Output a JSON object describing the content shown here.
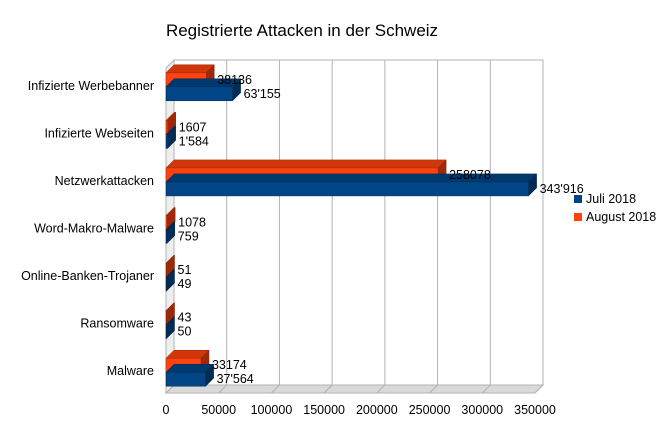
{
  "chart_data": {
    "type": "bar",
    "orientation": "horizontal",
    "three_d": true,
    "title": "Registrierte Attacken in der Schweiz",
    "categories": [
      "Infizierte Werbebanner",
      "Infizierte Webseiten",
      "Netzwerkattacken",
      "Word-Makro-Malware",
      "Online-Banken-Trojaner",
      "Ransomware",
      "Malware"
    ],
    "series": [
      {
        "name": "Juli 2018",
        "color": "#004586",
        "values": [
          63155,
          1584,
          343916,
          759,
          49,
          50,
          37564
        ],
        "labels": [
          "63'155",
          "1'584",
          "343'916",
          "759",
          "49",
          "50",
          "37'564"
        ]
      },
      {
        "name": "August 2018",
        "color": "#ff420e",
        "values": [
          38136,
          1607,
          258078,
          1078,
          51,
          43,
          33174
        ],
        "labels": [
          "38136",
          "1607",
          "258078",
          "1078",
          "51",
          "43",
          "33174"
        ]
      }
    ],
    "xlim": [
      0,
      350000
    ],
    "xticks": [
      "0",
      "50000",
      "100000",
      "150000",
      "200000",
      "250000",
      "300000",
      "350000"
    ],
    "grid": true,
    "legend_position": "right"
  }
}
